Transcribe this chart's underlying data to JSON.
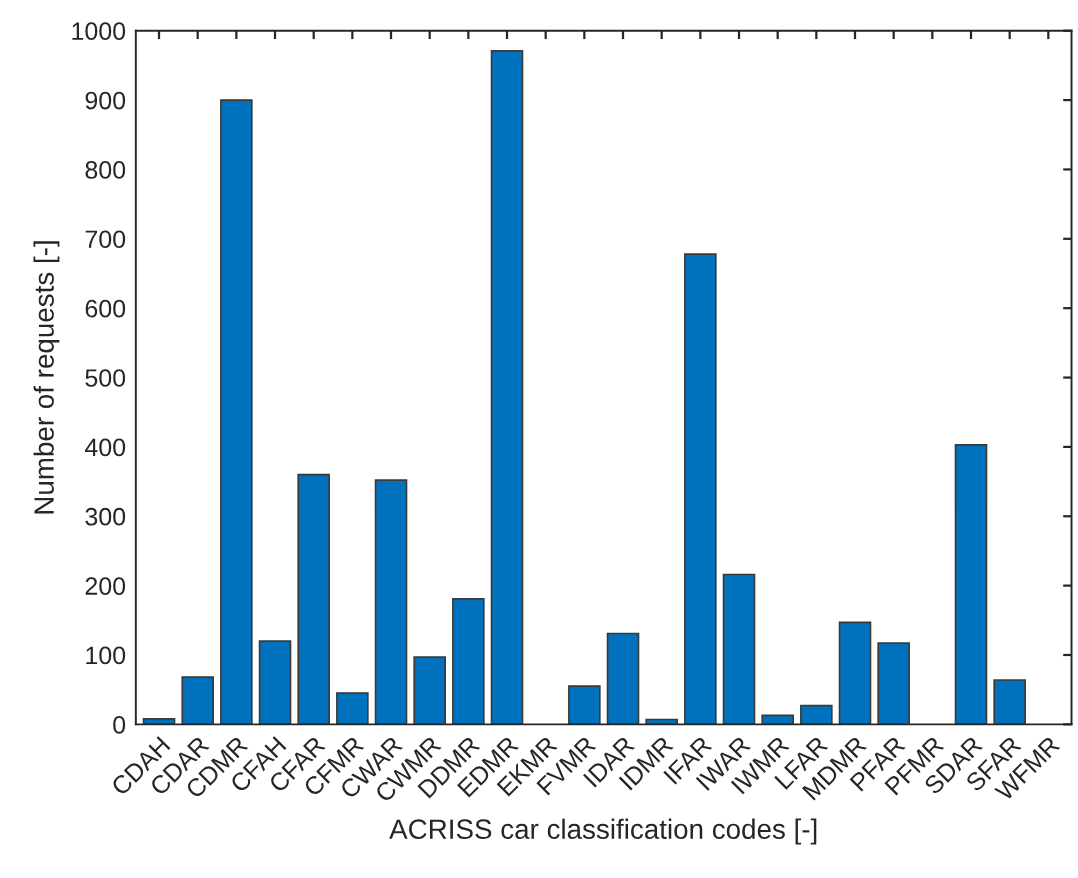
{
  "chart_data": {
    "type": "bar",
    "xlabel": "ACRISS car classification codes [-]",
    "ylabel": "Number of requests [-]",
    "categories": [
      "CDAH",
      "CDAR",
      "CDMR",
      "CFAH",
      "CFAR",
      "CFMR",
      "CWAR",
      "CWMR",
      "DDMR",
      "EDMR",
      "EKMR",
      "FVMR",
      "IDAR",
      "IDMR",
      "IFAR",
      "IWAR",
      "IWMR",
      "LFAR",
      "MDMR",
      "PFAR",
      "PFMR",
      "SDAR",
      "SFAR",
      "WFMR"
    ],
    "values": [
      8,
      68,
      900,
      120,
      360,
      45,
      352,
      97,
      181,
      971,
      0,
      55,
      131,
      7,
      678,
      216,
      13,
      27,
      147,
      117,
      0,
      403,
      64,
      0
    ],
    "color": "#0072bd",
    "ylim": [
      0,
      1000
    ],
    "yticks": [
      0,
      100,
      200,
      300,
      400,
      500,
      600,
      700,
      800,
      900,
      1000
    ],
    "grid": false
  }
}
